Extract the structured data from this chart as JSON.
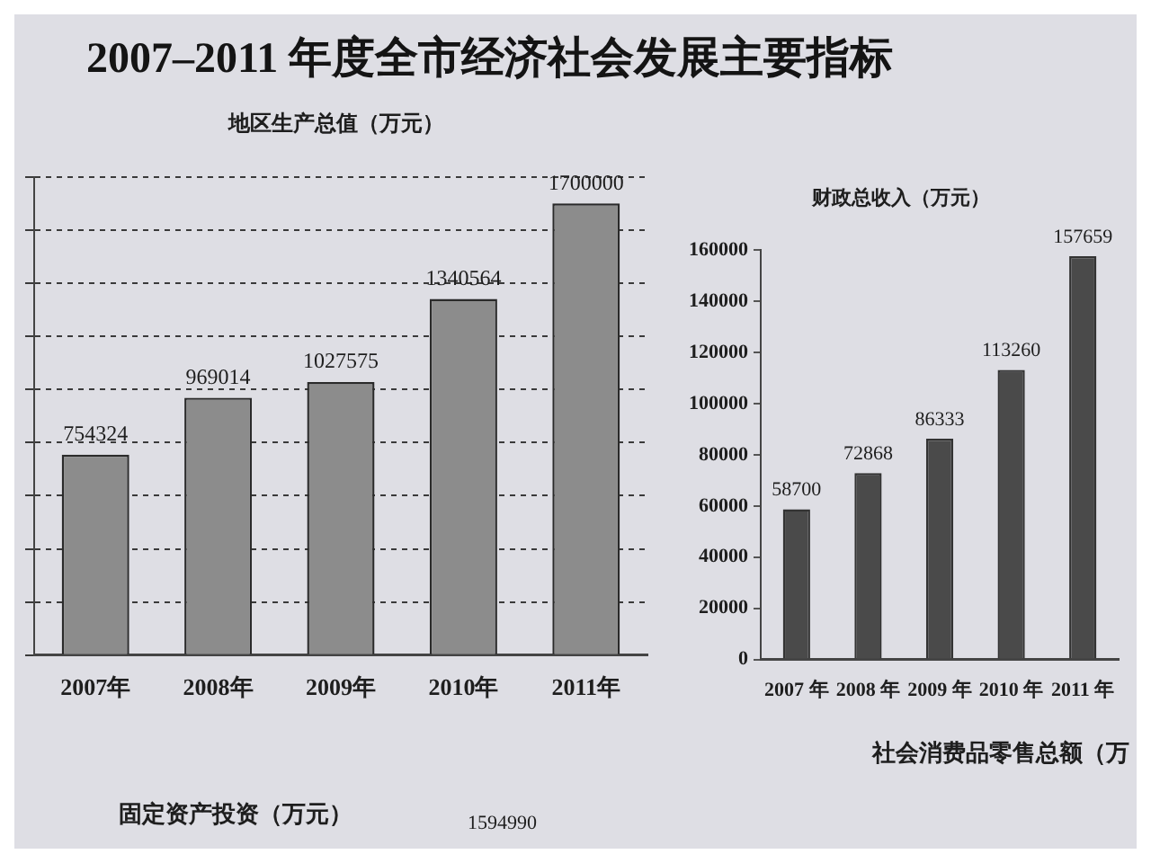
{
  "chart_data": [
    {
      "type": "other",
      "title": "2007–2011 年度全市经济社会发展主要指标"
    },
    {
      "type": "bar",
      "title": "地区生产总值（万元）",
      "categories": [
        "2007年",
        "2008年",
        "2009年",
        "2010年",
        "2011年"
      ],
      "values": [
        754324,
        969014,
        1027575,
        1340564,
        1700000
      ],
      "color": "#8c8c8c",
      "ylim": [
        0,
        1800000
      ],
      "yticks": [
        {
          "value": 0,
          "label": null
        },
        {
          "value": 200000,
          "label": null
        },
        {
          "value": 400000,
          "label": null
        },
        {
          "value": 600000,
          "label": null
        },
        {
          "value": 800000,
          "label": null
        },
        {
          "value": 1000000,
          "label": null
        },
        {
          "value": 1200000,
          "label": null
        },
        {
          "value": 1400000,
          "label": null
        },
        {
          "value": 1600000,
          "label": null
        },
        {
          "value": 1800000,
          "label": null
        }
      ],
      "grid": "y",
      "tick_labels": "x",
      "data_labels": true
    },
    {
      "type": "bar",
      "title": "财政总收入（万元）",
      "categories": [
        "2007 年",
        "2008 年",
        "2009 年",
        "2010 年",
        "2011 年"
      ],
      "values": [
        58700,
        72868,
        86333,
        113260,
        157659
      ],
      "color": "#4a4a4a",
      "ylim": [
        0,
        160000
      ],
      "yticks": [
        0,
        20000,
        40000,
        60000,
        80000,
        100000,
        120000,
        140000,
        160000
      ],
      "data_labels": true
    },
    {
      "type": "other",
      "annotations": [
        "社会消费品零售总额（万",
        "固定资产投资（万元）",
        "1594990"
      ]
    }
  ]
}
